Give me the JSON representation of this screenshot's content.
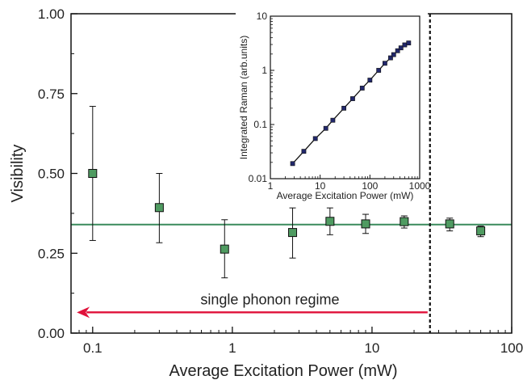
{
  "chart_data": [
    {
      "type": "scatter",
      "xlabel": "Average Excitation Power (mW)",
      "ylabel": "Visibility",
      "xscale": "log",
      "xlim": [
        0.07,
        100
      ],
      "ylim": [
        0,
        1
      ],
      "xticks": [
        0.1,
        1,
        10,
        100
      ],
      "xtick_labels": [
        "0.1",
        "1",
        "10",
        "100"
      ],
      "yticks": [
        0,
        0.25,
        0.5,
        0.75,
        1
      ],
      "ytick_labels": [
        "0.00",
        "0.25",
        "0.50",
        "0.75",
        "1.00"
      ],
      "grid": false,
      "series": [
        {
          "x": [
            0.1,
            0.3,
            0.88,
            2.7,
            5,
            9,
            17,
            36,
            60
          ],
          "y": [
            0.5,
            0.393,
            0.263,
            0.315,
            0.35,
            0.342,
            0.349,
            0.342,
            0.32
          ],
          "err_low": [
            0.21,
            0.11,
            0.09,
            0.08,
            0.042,
            0.03,
            0.02,
            0.022,
            0.018
          ],
          "err_high": [
            0.21,
            0.107,
            0.092,
            0.077,
            0.042,
            0.03,
            0.018,
            0.018,
            0.015
          ]
        }
      ],
      "hline": 0.34,
      "vline": 26,
      "annotation": {
        "text": "single phonon regime",
        "arrow_from_x": 25,
        "arrow_to_x": 0.077,
        "y": 0.065
      },
      "colors": {
        "marker_fill": "#4f9b61",
        "hline": "#3a8a5c",
        "arrow": "#e0113a",
        "axis": "#111111"
      }
    },
    {
      "type": "line",
      "xlabel": "Average Excitation Power (mW)",
      "ylabel": "Integrated Raman (arb.units)",
      "xscale": "log",
      "yscale": "log",
      "xlim": [
        1,
        1000
      ],
      "ylim": [
        0.01,
        10
      ],
      "xticks": [
        1,
        10,
        100,
        1000
      ],
      "xtick_labels": [
        "1",
        "10",
        "100",
        "1000"
      ],
      "yticks": [
        0.01,
        0.1,
        1,
        10
      ],
      "ytick_labels": [
        "0.01",
        "0.1",
        "1",
        "10"
      ],
      "series": [
        {
          "x": [
            2.8,
            4.7,
            8,
            13,
            18,
            30,
            45,
            70,
            100,
            150,
            200,
            260,
            300,
            360,
            420,
            500,
            600
          ],
          "y": [
            0.019,
            0.032,
            0.055,
            0.085,
            0.12,
            0.2,
            0.3,
            0.47,
            0.66,
            1.0,
            1.35,
            1.7,
            1.95,
            2.3,
            2.6,
            2.95,
            3.2
          ]
        }
      ],
      "colors": {
        "marker_fill": "#22286b",
        "line": "#111111"
      }
    }
  ]
}
